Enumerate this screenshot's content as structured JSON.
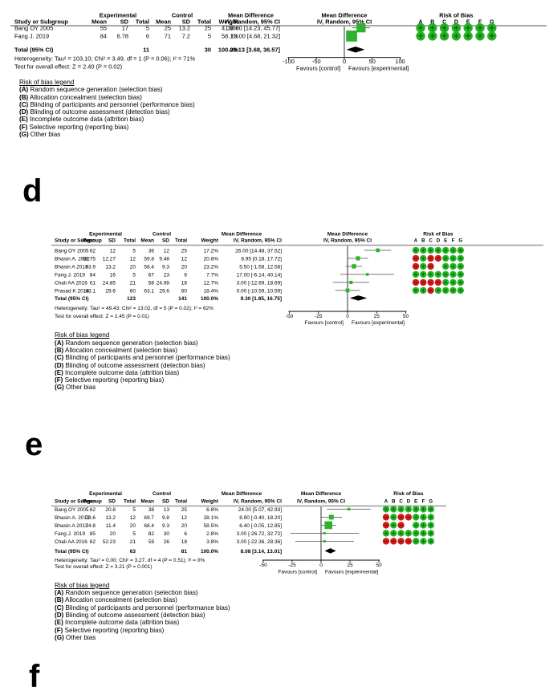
{
  "colors": {
    "rob_green": "#21b321",
    "rob_red": "#cc1a1a",
    "rob_symbol_green": "#0b5c0b",
    "rob_symbol_red": "#5e0808",
    "marker_green": "#2db32d",
    "diamond_black": "#000000",
    "rule_gray": "#9c9c9c",
    "ci_line": "#4a4a4a",
    "text": "#000000",
    "background": "#ffffff"
  },
  "strings": {
    "experimental": "Experimental",
    "control": "Control",
    "mean_difference": "Mean Difference",
    "risk_of_bias": "Risk of Bias",
    "study_or_subgroup": "Study or Subgroup",
    "mean": "Mean",
    "sd": "SD",
    "total": "Total",
    "weight": "Weight",
    "iv_random": "IV, Random, 95% CI",
    "total_label": "Total (95% CI)",
    "favours_left": "Favours [control]",
    "favours_right": "Favours [experimental]",
    "rob_columns": [
      "A",
      "B",
      "C",
      "D",
      "E",
      "F",
      "G"
    ]
  },
  "legend": {
    "title": "Risk of bias legend",
    "items": [
      {
        "key": "(A)",
        "text": "Random sequence generation (selection bias)"
      },
      {
        "key": "(B)",
        "text": "Allocation concealment (selection bias)"
      },
      {
        "key": "(C)",
        "text": "Blinding of participants and personnel (performance bias)"
      },
      {
        "key": "(D)",
        "text": "Blinding of outcome assessment (detection bias)"
      },
      {
        "key": "(E)",
        "text": "Incomplete outcome data (attrition bias)"
      },
      {
        "key": "(F)",
        "text": "Selective reporting (reporting bias)"
      },
      {
        "key": "(G)",
        "text": "Other bias"
      }
    ]
  },
  "chart_data": [
    {
      "type": "forest",
      "panel_label": "d",
      "effect_measure": "Mean Difference",
      "model": "IV, Random, 95% CI",
      "axis": {
        "min": -100,
        "max": 100,
        "ticks": [
          -100,
          -50,
          0,
          50,
          100
        ]
      },
      "studies": [
        {
          "study": "Bang OY 2005",
          "exp_mean": "55",
          "exp_sd": "17",
          "exp_total": "5",
          "ctrl_mean": "25",
          "ctrl_sd": "13.2",
          "ctrl_total": "25",
          "weight": "41.9%",
          "weight_pct": 41.9,
          "md": 30.0,
          "ci_low": 14.23,
          "ci_high": 45.77,
          "md_text": "30.00 [14.23, 45.77]",
          "risk_of_bias": [
            "green",
            "green",
            "green",
            "green",
            "green",
            "green",
            "green"
          ]
        },
        {
          "study": "Fang J. 2019",
          "exp_mean": "84",
          "exp_sd": "6.78",
          "exp_total": "6",
          "ctrl_mean": "71",
          "ctrl_sd": "7.2",
          "ctrl_total": "5",
          "weight": "58.1%",
          "weight_pct": 58.1,
          "md": 13.0,
          "ci_low": 4.68,
          "ci_high": 21.32,
          "md_text": "13.00 [4.68, 21.32]",
          "risk_of_bias": [
            "green",
            "green",
            "green",
            "green",
            "green",
            "green",
            "green"
          ]
        }
      ],
      "total": {
        "exp_total": "11",
        "ctrl_total": "30",
        "weight": "100.0%",
        "md": 20.13,
        "ci_low": 3.68,
        "ci_high": 36.57,
        "md_text": "20.13 [3.68, 36.57]"
      },
      "heterogeneity": "Heterogeneity: Tau² = 103.10; Chi² = 3.49, df = 1 (P = 0.06); I² = 71%",
      "overall_effect": "Test for overall effect: Z = 2.40 (P = 0.02)"
    },
    {
      "type": "forest",
      "panel_label": "e",
      "effect_measure": "Mean Difference",
      "model": "IV, Random, 95% CI",
      "axis": {
        "min": -50,
        "max": 50,
        "ticks": [
          -50,
          -25,
          0,
          25,
          50
        ]
      },
      "studies": [
        {
          "study": "Bang OY 2005",
          "exp_mean": "62",
          "exp_sd": "12",
          "exp_total": "5",
          "ctrl_mean": "36",
          "ctrl_sd": "12",
          "ctrl_total": "25",
          "weight": "17.2%",
          "weight_pct": 17.2,
          "md": 26.0,
          "ci_low": 14.48,
          "ci_high": 37.52,
          "md_text": "26.00 [14.48, 37.52]",
          "risk_of_bias": [
            "green",
            "green",
            "green",
            "green",
            "green",
            "green",
            "green"
          ]
        },
        {
          "study": "Bhasin A. 2012",
          "exp_mean": "68.75",
          "exp_sd": "12.27",
          "exp_total": "12",
          "ctrl_mean": "59.8",
          "ctrl_sd": "9.48",
          "ctrl_total": "12",
          "weight": "20.8%",
          "weight_pct": 20.8,
          "md": 8.95,
          "ci_low": 0.18,
          "ci_high": 17.72,
          "md_text": "8.95 [0.18, 17.72]",
          "risk_of_bias": [
            "red",
            "green",
            "red",
            "red",
            "green",
            "green",
            "green"
          ]
        },
        {
          "study": "Bhasin A 2013",
          "exp_mean": "63.9",
          "exp_sd": "13.2",
          "exp_total": "20",
          "ctrl_mean": "58.4",
          "ctrl_sd": "9.3",
          "ctrl_total": "20",
          "weight": "23.2%",
          "weight_pct": 23.2,
          "md": 5.5,
          "ci_low": -1.58,
          "ci_high": 12.58,
          "md_text": "5.50 [-1.58, 12.58]",
          "risk_of_bias": [
            "red",
            "green",
            "red",
            "blank",
            "green",
            "green",
            "green"
          ]
        },
        {
          "study": "Fang J. 2019",
          "exp_mean": "84",
          "exp_sd": "16",
          "exp_total": "5",
          "ctrl_mean": "67",
          "ctrl_sd": "23",
          "ctrl_total": "6",
          "weight": "7.7%",
          "weight_pct": 7.7,
          "md": 17.0,
          "ci_low": -6.14,
          "ci_high": 40.14,
          "md_text": "17.00 [-6.14, 40.14]",
          "risk_of_bias": [
            "green",
            "green",
            "green",
            "green",
            "green",
            "green",
            "green"
          ]
        },
        {
          "study": "Chali AA 2016",
          "exp_mean": "61",
          "exp_sd": "24.85",
          "exp_total": "21",
          "ctrl_mean": "58",
          "ctrl_sd": "24.98",
          "ctrl_total": "18",
          "weight": "12.7%",
          "weight_pct": 12.7,
          "md": 3.0,
          "ci_low": -12.69,
          "ci_high": 18.69,
          "md_text": "3.00 [-12.69, 18.69]",
          "risk_of_bias": [
            "red",
            "red",
            "red",
            "red",
            "green",
            "green",
            "green"
          ]
        },
        {
          "study": "Prasad K 2014",
          "exp_mean": "63.1",
          "exp_sd": "29.6",
          "exp_total": "60",
          "ctrl_mean": "63.1",
          "ctrl_sd": "29.6",
          "ctrl_total": "60",
          "weight": "18.4%",
          "weight_pct": 18.4,
          "md": 0.0,
          "ci_low": -10.59,
          "ci_high": 10.59,
          "md_text": "0.00 [-10.59, 10.59]",
          "risk_of_bias": [
            "green",
            "green",
            "red",
            "green",
            "green",
            "green",
            "green"
          ]
        }
      ],
      "total": {
        "exp_total": "123",
        "ctrl_total": "141",
        "weight": "100.0%",
        "md": 9.3,
        "ci_low": 1.85,
        "ci_high": 16.75,
        "md_text": "9.30 [1.85, 16.75]"
      },
      "heterogeneity": "Heterogeneity: Tau² = 49.43; Chi² = 13.02, df = 5 (P = 0.02); I² = 62%",
      "overall_effect": "Test for overall effect: Z = 2.45 (P = 0.01)"
    },
    {
      "type": "forest",
      "panel_label": "f",
      "effect_measure": "Mean Difference",
      "model": "IV, Random, 95% CI",
      "axis": {
        "min": -50,
        "max": 50,
        "ticks": [
          -50,
          -25,
          0,
          25,
          50
        ]
      },
      "studies": [
        {
          "study": "Bang OY 2005",
          "exp_mean": "62",
          "exp_sd": "20.8",
          "exp_total": "5",
          "ctrl_mean": "38",
          "ctrl_sd": "13",
          "ctrl_total": "25",
          "weight": "6.8%",
          "weight_pct": 6.8,
          "md": 24.0,
          "ci_low": 5.07,
          "ci_high": 42.93,
          "md_text": "24.00 [5.07, 42.93]",
          "risk_of_bias": [
            "green",
            "green",
            "green",
            "green",
            "green",
            "green",
            "green"
          ]
        },
        {
          "study": "Bhasin A. 2012",
          "exp_mean": "78.6",
          "exp_sd": "13.2",
          "exp_total": "12",
          "ctrl_mean": "69.7",
          "ctrl_sd": "9.8",
          "ctrl_total": "12",
          "weight": "28.1%",
          "weight_pct": 28.1,
          "md": 8.9,
          "ci_low": -0.4,
          "ci_high": 18.2,
          "md_text": "8.90 [-0.40, 18.20]",
          "risk_of_bias": [
            "red",
            "green",
            "red",
            "red",
            "green",
            "green",
            "green"
          ]
        },
        {
          "study": "Bhasin A 2013",
          "exp_mean": "74.8",
          "exp_sd": "11.4",
          "exp_total": "20",
          "ctrl_mean": "68.4",
          "ctrl_sd": "9.3",
          "ctrl_total": "20",
          "weight": "58.5%",
          "weight_pct": 58.5,
          "md": 6.4,
          "ci_low": -0.05,
          "ci_high": 12.85,
          "md_text": "6.40 [-0.05, 12.85]",
          "risk_of_bias": [
            "red",
            "green",
            "red",
            "blank",
            "green",
            "green",
            "green"
          ]
        },
        {
          "study": "Fang J. 2019",
          "exp_mean": "85",
          "exp_sd": "20",
          "exp_total": "5",
          "ctrl_mean": "82",
          "ctrl_sd": "30",
          "ctrl_total": "6",
          "weight": "2.8%",
          "weight_pct": 2.8,
          "md": 3.0,
          "ci_low": -26.72,
          "ci_high": 32.72,
          "md_text": "3.00 [-26.72, 32.72]",
          "risk_of_bias": [
            "green",
            "green",
            "green",
            "green",
            "green",
            "green",
            "green"
          ]
        },
        {
          "study": "Chali AA 2016",
          "exp_mean": "62",
          "exp_sd": "52.23",
          "exp_total": "21",
          "ctrl_mean": "59",
          "ctrl_sd": "26",
          "ctrl_total": "18",
          "weight": "3.8%",
          "weight_pct": 3.8,
          "md": 3.0,
          "ci_low": -22.36,
          "ci_high": 28.36,
          "md_text": "3.00 [-22.36, 28.36]",
          "risk_of_bias": [
            "red",
            "red",
            "red",
            "red",
            "green",
            "green",
            "green"
          ]
        }
      ],
      "total": {
        "exp_total": "63",
        "ctrl_total": "81",
        "weight": "100.0%",
        "md": 8.08,
        "ci_low": 3.14,
        "ci_high": 13.01,
        "md_text": "8.08 [3.14, 13.01]"
      },
      "heterogeneity": "Heterogeneity: Tau² = 0.00; Chi² = 3.27, df = 4 (P = 0.51); I² = 0%",
      "overall_effect": "Test for overall effect: Z = 3.21 (P = 0.001)"
    }
  ]
}
